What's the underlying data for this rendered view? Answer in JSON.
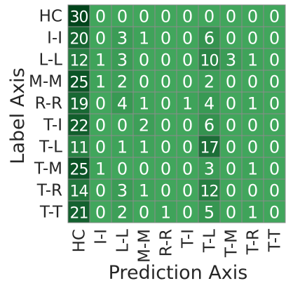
{
  "chart_data": {
    "type": "heatmap",
    "xlabel": "Prediction Axis",
    "ylabel": "Label Axis",
    "x_categories": [
      "HC",
      "I-I",
      "L-L",
      "M-M",
      "R-R",
      "T-I",
      "T-L",
      "T-M",
      "T-R",
      "T-T"
    ],
    "y_categories": [
      "HC",
      "I-I",
      "L-L",
      "M-M",
      "R-R",
      "T-I",
      "T-L",
      "T-M",
      "T-R",
      "T-T"
    ],
    "values": [
      [
        30,
        0,
        0,
        0,
        0,
        0,
        0,
        0,
        0,
        0
      ],
      [
        20,
        0,
        3,
        1,
        0,
        0,
        6,
        0,
        0,
        0
      ],
      [
        12,
        1,
        3,
        0,
        0,
        0,
        10,
        3,
        1,
        0
      ],
      [
        25,
        1,
        2,
        0,
        0,
        0,
        2,
        0,
        0,
        0
      ],
      [
        19,
        0,
        4,
        1,
        0,
        1,
        4,
        0,
        1,
        0
      ],
      [
        22,
        0,
        0,
        2,
        0,
        0,
        6,
        0,
        0,
        0
      ],
      [
        11,
        0,
        1,
        1,
        0,
        0,
        17,
        0,
        0,
        0
      ],
      [
        25,
        1,
        0,
        0,
        0,
        0,
        3,
        0,
        1,
        0
      ],
      [
        14,
        0,
        3,
        1,
        0,
        0,
        12,
        0,
        0,
        0
      ],
      [
        21,
        0,
        2,
        0,
        1,
        0,
        5,
        0,
        1,
        0
      ]
    ],
    "colorscale": {
      "low": "#41a65c",
      "high": "#00441b"
    },
    "value_range": [
      0,
      30
    ],
    "annotated": true,
    "colorbar": false
  }
}
